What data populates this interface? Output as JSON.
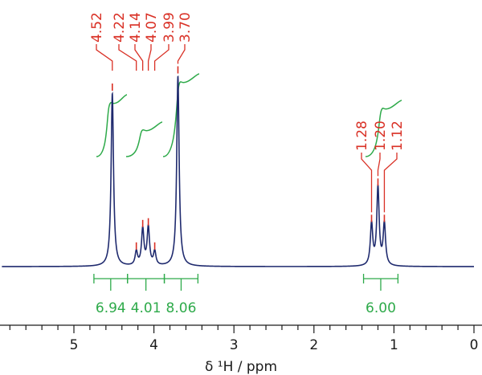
{
  "chart_data": {
    "type": "line",
    "xlabel": "δ ¹H / ppm",
    "x_axis": {
      "range": [
        5.9,
        0.0
      ],
      "reversed": true,
      "major_ticks": [
        5,
        4,
        3,
        2,
        1,
        0
      ],
      "minor_step": 0.2
    },
    "peaks": [
      {
        "shift": 4.52,
        "height": 1.0,
        "width": 0.018
      },
      {
        "shift": 4.22,
        "height": 0.08,
        "width": 0.018
      },
      {
        "shift": 4.14,
        "height": 0.21,
        "width": 0.018
      },
      {
        "shift": 4.07,
        "height": 0.22,
        "width": 0.018
      },
      {
        "shift": 3.99,
        "height": 0.08,
        "width": 0.018
      },
      {
        "shift": 3.7,
        "height": 1.1,
        "width": 0.018
      },
      {
        "shift": 1.28,
        "height": 0.24,
        "width": 0.018
      },
      {
        "shift": 1.2,
        "height": 0.45,
        "width": 0.018
      },
      {
        "shift": 1.12,
        "height": 0.24,
        "width": 0.018
      }
    ],
    "peak_labels": [
      "4.52",
      "4.22",
      "4.14",
      "4.07",
      "3.99",
      "3.70",
      "1.28",
      "1.20",
      "1.12"
    ],
    "integrals": [
      {
        "value": "6.94",
        "from": 4.75,
        "to": 4.33
      },
      {
        "value": "4.01",
        "from": 4.33,
        "to": 3.87
      },
      {
        "value": "8.06",
        "from": 3.87,
        "to": 3.45
      },
      {
        "value": "6.00",
        "from": 1.38,
        "to": 0.95
      }
    ],
    "colors": {
      "spectrum": "#1f2a6e",
      "peak_labels": "#d93025",
      "integrals": "#2eaa4a",
      "axis": "#1a1a1a"
    }
  }
}
